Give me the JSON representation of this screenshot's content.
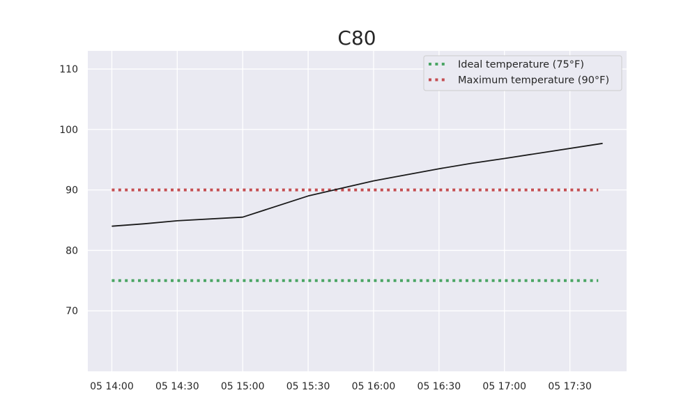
{
  "chart_data": {
    "type": "line",
    "title": "C80",
    "xlabel": "",
    "ylabel": "",
    "x_tick_labels": [
      "05 14:00",
      "05 14:30",
      "05 15:00",
      "05 15:30",
      "05 16:00",
      "05 16:30",
      "05 17:00",
      "05 17:30"
    ],
    "x_tick_minutes": [
      0,
      30,
      60,
      90,
      120,
      150,
      180,
      210
    ],
    "xlim_minutes": [
      -11,
      236
    ],
    "y_ticks": [
      70,
      80,
      90,
      100,
      110
    ],
    "ylim": [
      60,
      113
    ],
    "grid": true,
    "legend_position": "top-right",
    "series": [
      {
        "name": "",
        "color": "#1a1a1a",
        "style": "solid",
        "x_minutes": [
          0,
          15,
          30,
          60,
          90,
          120,
          150,
          165,
          180,
          225
        ],
        "y": [
          84.0,
          84.4,
          84.9,
          85.5,
          89.0,
          91.5,
          93.5,
          94.4,
          95.2,
          97.7
        ]
      },
      {
        "name": "Ideal temperature (75°F)",
        "color": "#4aa564",
        "style": "dotted",
        "x_minutes": [
          0,
          223
        ],
        "y": [
          75,
          75
        ]
      },
      {
        "name": "Maximum temperature (90°F)",
        "color": "#c44e52",
        "style": "dotted",
        "x_minutes": [
          0,
          223
        ],
        "y": [
          90,
          90
        ]
      }
    ]
  }
}
